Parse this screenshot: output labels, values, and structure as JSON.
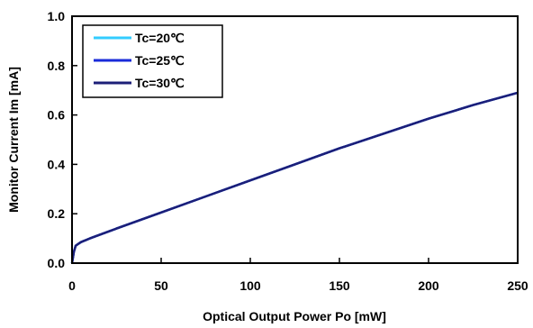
{
  "chart_data": {
    "type": "line",
    "xlabel": "Optical Output Power Po [mW]",
    "ylabel": "Monitor Current Im [mA]",
    "xlim": [
      0,
      250
    ],
    "ylim": [
      0,
      1.0
    ],
    "xticks": [
      0,
      50,
      100,
      150,
      200,
      250
    ],
    "yticks": [
      0.0,
      0.2,
      0.4,
      0.6,
      0.8,
      1.0
    ],
    "xtick_labels": [
      "0",
      "50",
      "100",
      "150",
      "200",
      "250"
    ],
    "ytick_labels": [
      "0.0",
      "0.2",
      "0.4",
      "0.6",
      "0.8",
      "1.0"
    ],
    "grid": false,
    "legend_position": "top-left",
    "series": [
      {
        "name": "Tc=20℃",
        "color": "#33ccff",
        "x": [
          0,
          1,
          2,
          3,
          5,
          10,
          25,
          50,
          75,
          100,
          125,
          150,
          175,
          200,
          225,
          250
        ],
        "y": [
          0.0,
          0.045,
          0.07,
          0.075,
          0.085,
          0.1,
          0.14,
          0.205,
          0.27,
          0.335,
          0.4,
          0.465,
          0.525,
          0.585,
          0.64,
          0.69
        ]
      },
      {
        "name": "Tc=25℃",
        "color": "#1a2bd9",
        "x": [
          0,
          1,
          2,
          3,
          5,
          10,
          25,
          50,
          75,
          100,
          125,
          150,
          175,
          200,
          225,
          250
        ],
        "y": [
          0.0,
          0.045,
          0.07,
          0.075,
          0.085,
          0.1,
          0.14,
          0.205,
          0.27,
          0.335,
          0.4,
          0.465,
          0.525,
          0.585,
          0.64,
          0.69
        ]
      },
      {
        "name": "Tc=30℃",
        "color": "#1c1f78",
        "x": [
          0,
          1,
          2,
          3,
          5,
          10,
          25,
          50,
          75,
          100,
          125,
          150,
          175,
          200,
          225,
          250
        ],
        "y": [
          0.0,
          0.045,
          0.07,
          0.075,
          0.085,
          0.1,
          0.14,
          0.205,
          0.27,
          0.335,
          0.4,
          0.465,
          0.525,
          0.585,
          0.64,
          0.69
        ]
      }
    ]
  }
}
